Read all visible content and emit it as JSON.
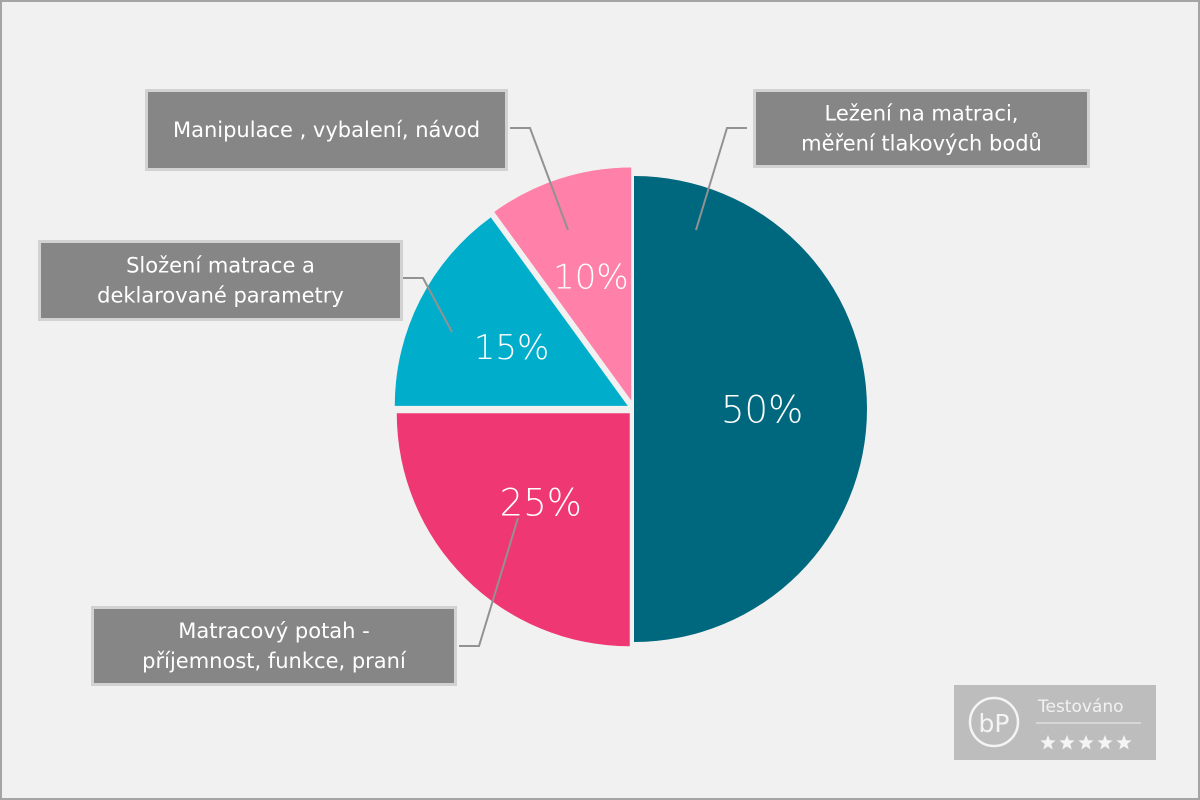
{
  "chart_data": {
    "type": "pie",
    "slices": [
      {
        "label_lines": [
          "Ležení na matraci,",
          "měření tlakových bodů"
        ],
        "value": 50,
        "value_label": "50%",
        "color": "#00687e"
      },
      {
        "label_lines": [
          "Matracový potah -",
          "příjemnost, funkce, praní"
        ],
        "value": 25,
        "value_label": "25%",
        "color": "#ef3873"
      },
      {
        "label_lines": [
          "Složení matrace a",
          "deklarované parametry"
        ],
        "value": 15,
        "value_label": "15%",
        "color": "#00aecc"
      },
      {
        "label_lines": [
          "Manipulace , vybalení, návod"
        ],
        "value": 10,
        "value_label": "10%",
        "color": "#ff80a8"
      }
    ],
    "legend": "callouts",
    "start": "top",
    "direction": "clockwise"
  },
  "badge": {
    "logo_letters": "bP",
    "title": "Testováno",
    "rating": 5,
    "max_rating": 5
  },
  "colors": {
    "background": "#f1f1f1",
    "callout_fill": "#868686",
    "callout_border": "#d2d2d2",
    "leader_line": "#929292",
    "badge_fill": "#bdbdbd"
  }
}
